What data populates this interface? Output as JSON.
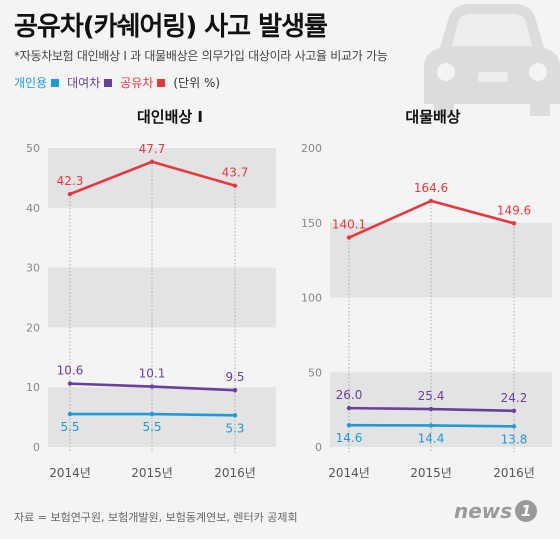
{
  "header": {
    "title": "공유차(카쉐어링) 사고 발생률",
    "subtitle": "*자동차보험 대인배상 Ⅰ 과 대물배상은 의무가입 대상이라 사고율 비교가 가능"
  },
  "legend": {
    "items": [
      {
        "label": "개인용",
        "color": "#1e9bd7"
      },
      {
        "label": "대여차",
        "color": "#6a3fa0"
      },
      {
        "label": "공유차",
        "color": "#e8383d"
      }
    ],
    "unit": "(단위 %)"
  },
  "colors": {
    "personal": "#1e9bd7",
    "rental": "#6a3fa0",
    "shared": "#e8383d",
    "band": "#e3e3e3",
    "icon": "#dddddd"
  },
  "icons": {
    "background": "car-icon"
  },
  "source": "자료 = 보험연구원, 보험개발원, 보험동계연보, 렌터카 공제회",
  "logo": {
    "text": "news",
    "number": "1"
  },
  "chart_data": [
    {
      "type": "line",
      "title": "대인배상 Ⅰ",
      "x": [
        "2014년",
        "2015년",
        "2016년"
      ],
      "ylim": [
        0,
        50
      ],
      "yticks": [
        0,
        10,
        20,
        30,
        40,
        50
      ],
      "series": [
        {
          "name": "공유차",
          "color": "#e8383d",
          "values": [
            42.3,
            47.7,
            43.7
          ],
          "labels": [
            "42.3",
            "47.7",
            "43.7"
          ]
        },
        {
          "name": "대여차",
          "color": "#6a3fa0",
          "values": [
            10.6,
            10.1,
            9.5
          ],
          "labels": [
            "10.6",
            "10.1",
            "9.5"
          ]
        },
        {
          "name": "개인용",
          "color": "#1e9bd7",
          "values": [
            5.5,
            5.5,
            5.3
          ],
          "labels": [
            "5.5",
            "5.5",
            "5.3"
          ]
        }
      ]
    },
    {
      "type": "line",
      "title": "대물배상",
      "x": [
        "2014년",
        "2015년",
        "2016년"
      ],
      "ylim": [
        0,
        200
      ],
      "yticks": [
        0,
        50,
        100,
        150,
        200
      ],
      "series": [
        {
          "name": "공유차",
          "color": "#e8383d",
          "values": [
            140.1,
            164.6,
            149.6
          ],
          "labels": [
            "140.1",
            "164.6",
            "149.6"
          ]
        },
        {
          "name": "대여차",
          "color": "#6a3fa0",
          "values": [
            26.0,
            25.4,
            24.2
          ],
          "labels": [
            "26.0",
            "25.4",
            "24.2"
          ]
        },
        {
          "name": "개인용",
          "color": "#1e9bd7",
          "values": [
            14.6,
            14.4,
            13.8
          ],
          "labels": [
            "14.6",
            "14.4",
            "13.8"
          ]
        }
      ]
    }
  ]
}
